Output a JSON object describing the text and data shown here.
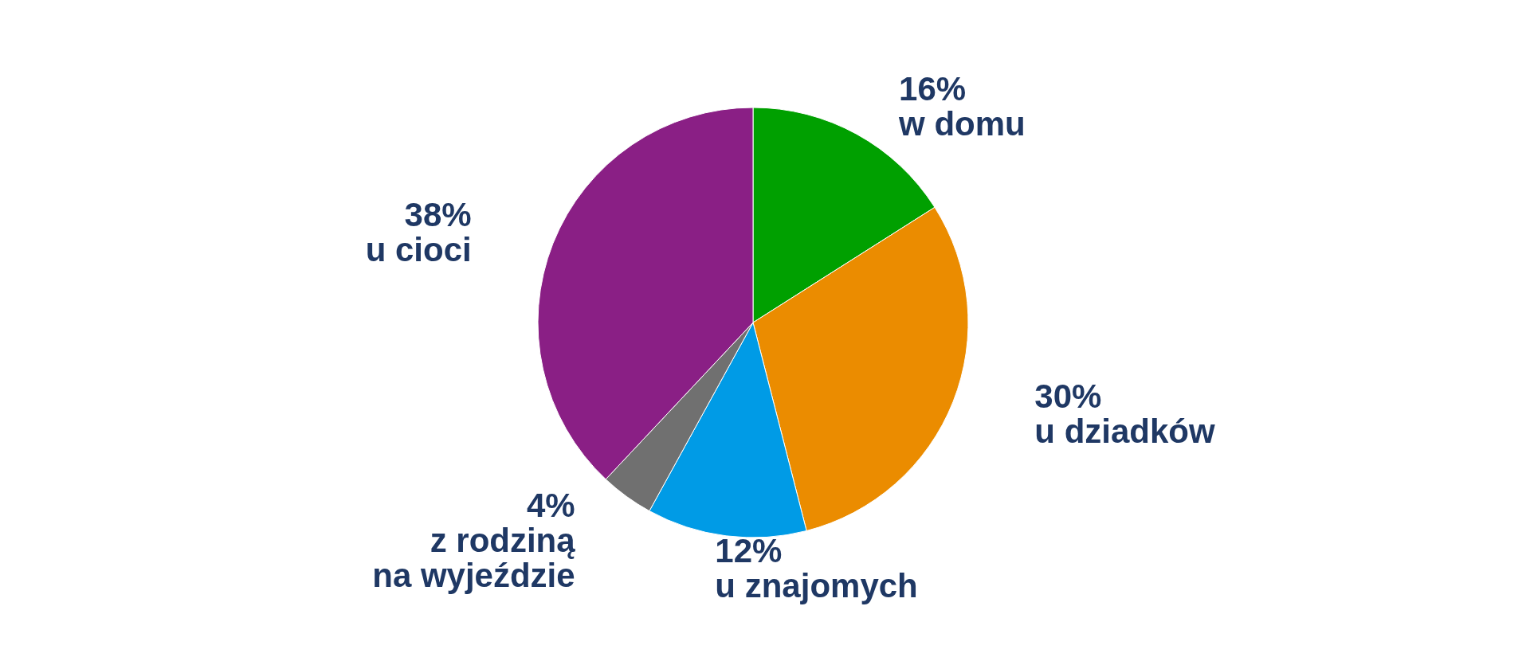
{
  "chart_data": {
    "type": "pie",
    "categories": [
      "w domu",
      "u dziadków",
      "u znajomych",
      "z rodziną na wyjeździe",
      "u cioci"
    ],
    "values": [
      16,
      30,
      12,
      4,
      38
    ],
    "value_labels": [
      "16%",
      "30%",
      "12%",
      "4%",
      "38%"
    ],
    "colors": [
      "#00a000",
      "#eb8c00",
      "#009be6",
      "#707070",
      "#8a1f85"
    ]
  }
}
